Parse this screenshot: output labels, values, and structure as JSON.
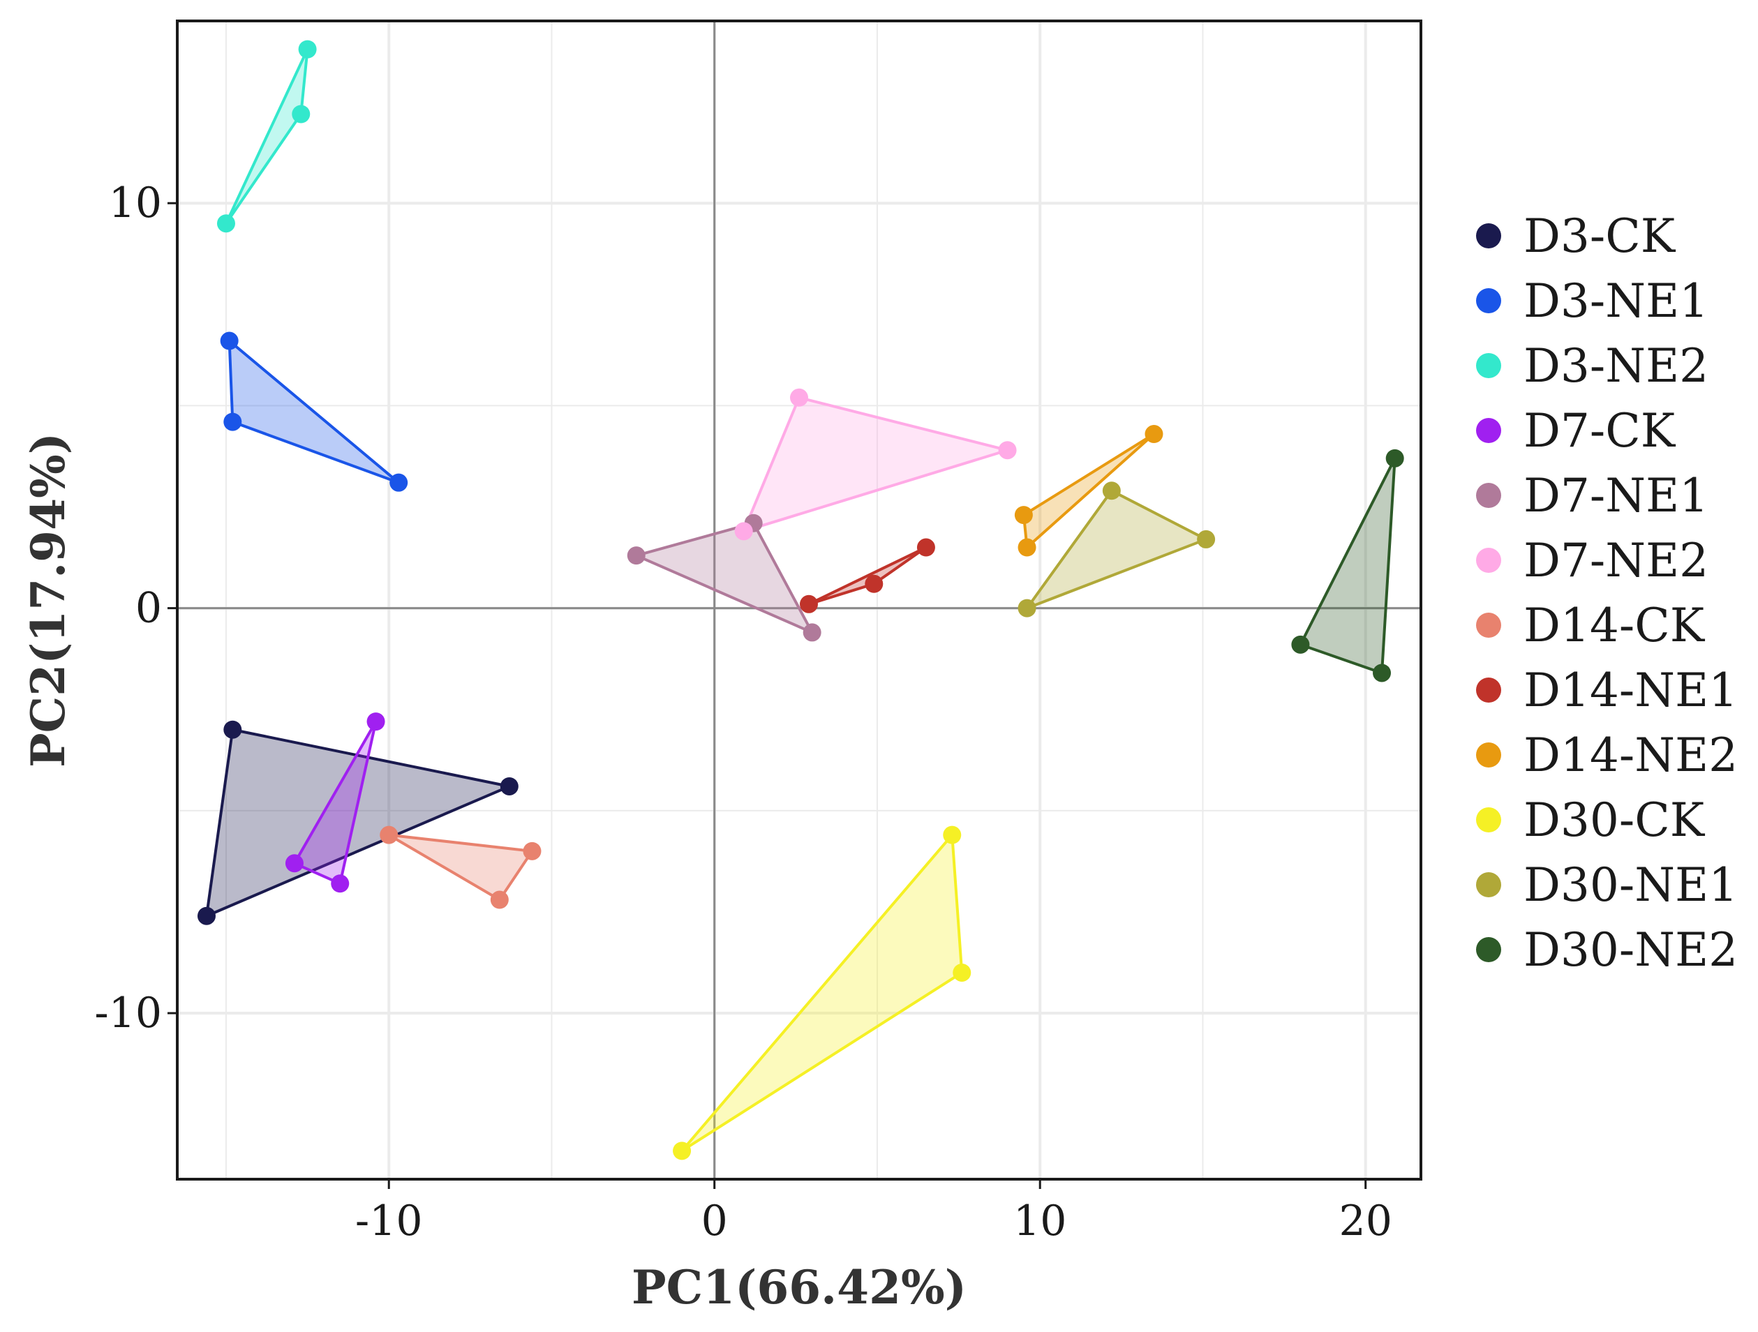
{
  "chart_data": {
    "type": "scatter",
    "title": "",
    "xlabel": "PC1(66.42%)",
    "ylabel": "PC2(17.94%)",
    "xlim": [
      -16.5,
      21.7
    ],
    "ylim": [
      -14.1,
      14.5
    ],
    "x_ticks": [
      -10,
      0,
      10,
      20
    ],
    "x_tick_labels": [
      "-10",
      "0",
      "10",
      "20"
    ],
    "y_ticks": [
      -10,
      0,
      10
    ],
    "y_tick_labels": [
      "-10",
      "0",
      "10"
    ],
    "grid": true,
    "zero_lines": true,
    "legend_position": "right",
    "series": [
      {
        "name": "D3-CK",
        "color": "#1a1a4e",
        "points": [
          [
            -14.8,
            -3.0
          ],
          [
            -6.3,
            -4.4
          ],
          [
            -15.6,
            -7.6
          ]
        ]
      },
      {
        "name": "D3-NE1",
        "color": "#1a55e8",
        "points": [
          [
            -14.9,
            6.6
          ],
          [
            -14.8,
            4.6
          ],
          [
            -9.7,
            3.1
          ]
        ]
      },
      {
        "name": "D3-NE2",
        "color": "#33e8cc",
        "points": [
          [
            -12.5,
            13.8
          ],
          [
            -12.7,
            12.2
          ],
          [
            -15.0,
            9.5
          ]
        ]
      },
      {
        "name": "D7-CK",
        "color": "#a020f0",
        "points": [
          [
            -10.4,
            -2.8
          ],
          [
            -12.9,
            -6.3
          ],
          [
            -11.5,
            -6.8
          ]
        ]
      },
      {
        "name": "D7-NE1",
        "color": "#b07a9a",
        "points": [
          [
            -2.4,
            1.3
          ],
          [
            1.2,
            2.1
          ],
          [
            3.0,
            -0.6
          ]
        ]
      },
      {
        "name": "D7-NE2",
        "color": "#ffaae6",
        "points": [
          [
            2.6,
            5.2
          ],
          [
            9.0,
            3.9
          ],
          [
            0.9,
            1.9
          ]
        ]
      },
      {
        "name": "D14-CK",
        "color": "#e8826e",
        "points": [
          [
            -10.0,
            -5.6
          ],
          [
            -5.6,
            -6.0
          ],
          [
            -6.6,
            -7.2
          ]
        ]
      },
      {
        "name": "D14-NE1",
        "color": "#c0332a",
        "points": [
          [
            6.5,
            1.5
          ],
          [
            4.9,
            0.6
          ],
          [
            2.9,
            0.1
          ]
        ]
      },
      {
        "name": "D14-NE2",
        "color": "#e89a10",
        "points": [
          [
            13.5,
            4.3
          ],
          [
            9.5,
            2.3
          ],
          [
            9.6,
            1.5
          ]
        ]
      },
      {
        "name": "D30-CK",
        "color": "#f5f025",
        "points": [
          [
            7.3,
            -5.6
          ],
          [
            7.6,
            -9.0
          ],
          [
            -1.0,
            -13.4
          ]
        ]
      },
      {
        "name": "D30-NE1",
        "color": "#b0a838",
        "points": [
          [
            12.2,
            2.9
          ],
          [
            15.1,
            1.7
          ],
          [
            9.6,
            0.0
          ]
        ]
      },
      {
        "name": "D30-NE2",
        "color": "#2d5a28",
        "points": [
          [
            20.9,
            3.7
          ],
          [
            18.0,
            -0.9
          ],
          [
            20.5,
            -1.6
          ]
        ]
      }
    ]
  }
}
